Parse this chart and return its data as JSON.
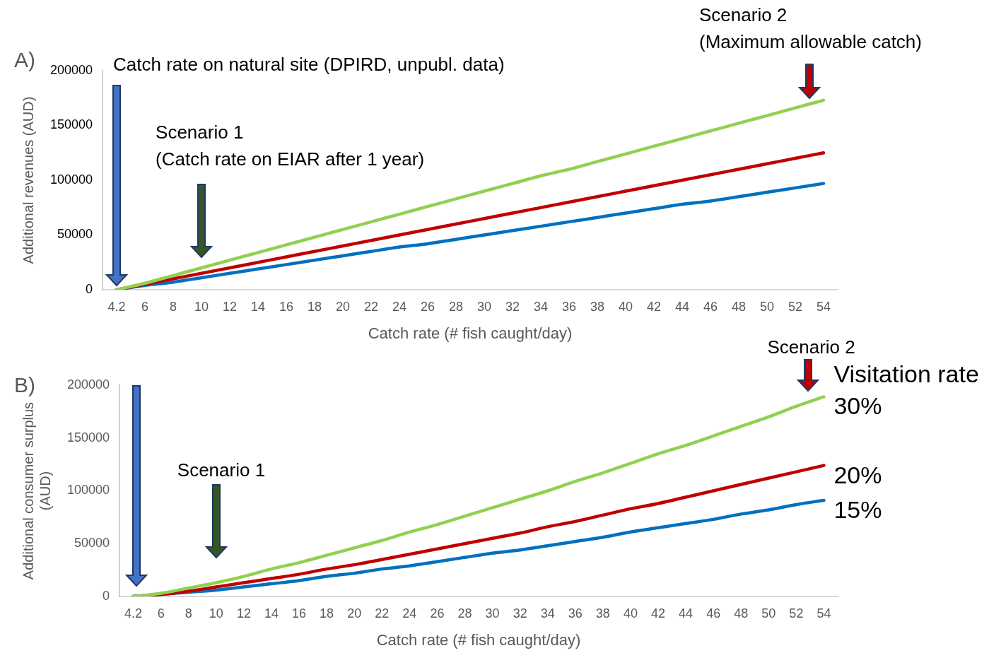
{
  "chart_data": [
    {
      "type": "line",
      "title": "A)",
      "xlabel": "Catch rate (# fish caught/day)",
      "ylabel": "Additional revenues (AUD)",
      "categories": [
        "4.2",
        "6",
        "8",
        "10",
        "12",
        "14",
        "16",
        "18",
        "20",
        "22",
        "24",
        "26",
        "28",
        "30",
        "32",
        "34",
        "36",
        "38",
        "40",
        "42",
        "44",
        "46",
        "48",
        "50",
        "52",
        "54"
      ],
      "series": [
        {
          "color": "#92d050",
          "values": [
            0,
            6000,
            13000,
            20000,
            27000,
            34000,
            41000,
            48000,
            55000,
            62000,
            69000,
            76000,
            83000,
            90000,
            97000,
            104000,
            110000,
            117000,
            124000,
            131000,
            138000,
            145000,
            152000,
            159000,
            166000,
            173000
          ]
        },
        {
          "color": "#c00000",
          "values": [
            0,
            5000,
            10000,
            15000,
            20000,
            25000,
            30000,
            35000,
            40000,
            45000,
            50000,
            55000,
            60000,
            65000,
            70000,
            75000,
            80000,
            85000,
            90000,
            95000,
            100000,
            105000,
            110000,
            115000,
            120000,
            125000
          ]
        },
        {
          "color": "#0070c0",
          "values": [
            0,
            4000,
            7000,
            11000,
            15000,
            19000,
            23000,
            27000,
            31000,
            35000,
            39000,
            42000,
            46000,
            50000,
            54000,
            58000,
            62000,
            66000,
            70000,
            74000,
            78000,
            81000,
            85000,
            89000,
            93000,
            97000
          ]
        }
      ],
      "ylim": [
        0,
        200000
      ],
      "yticks": [
        0,
        50000,
        100000,
        150000,
        200000
      ],
      "grid": false,
      "legend": false,
      "marker": "none",
      "line_style": "solid",
      "annotations": [
        "Catch rate on natural site (DPIRD, unpubl. data)",
        "Scenario 1\n(Catch rate on EIAR after 1 year)",
        "Scenario 2\n(Maximum allowable catch)"
      ]
    },
    {
      "type": "line",
      "title": "B)",
      "xlabel": "Catch rate (# fish caught/day)",
      "ylabel": "Additional consumer surplus\n(AUD)",
      "legend_title": "Visitation rate",
      "categories": [
        "4.2",
        "6",
        "8",
        "10",
        "12",
        "14",
        "16",
        "18",
        "20",
        "22",
        "24",
        "26",
        "28",
        "30",
        "32",
        "34",
        "36",
        "38",
        "40",
        "42",
        "44",
        "46",
        "48",
        "50",
        "52",
        "54"
      ],
      "series": [
        {
          "name": "30%",
          "color": "#92d050",
          "values": [
            0,
            3000,
            8000,
            13000,
            19000,
            26000,
            32000,
            39000,
            46000,
            53000,
            61000,
            68000,
            76000,
            84000,
            92000,
            100000,
            109000,
            117000,
            126000,
            135000,
            143000,
            152000,
            161000,
            170000,
            180000,
            189000
          ]
        },
        {
          "name": "20%",
          "color": "#c00000",
          "values": [
            0,
            2000,
            5000,
            9000,
            13000,
            17000,
            21000,
            26000,
            30000,
            35000,
            40000,
            45000,
            50000,
            55000,
            60000,
            66000,
            71000,
            77000,
            83000,
            88000,
            94000,
            100000,
            106000,
            112000,
            118000,
            124000
          ]
        },
        {
          "name": "15%",
          "color": "#0070c0",
          "values": [
            0,
            2000,
            4000,
            6000,
            9000,
            12000,
            15000,
            19000,
            22000,
            26000,
            29000,
            33000,
            37000,
            41000,
            44000,
            48000,
            52000,
            56000,
            61000,
            65000,
            69000,
            73000,
            78000,
            82000,
            87000,
            91000
          ]
        }
      ],
      "ylim": [
        0,
        200000
      ],
      "yticks": [
        0,
        50000,
        100000,
        150000,
        200000
      ],
      "grid": false,
      "legend": "right",
      "marker": "none",
      "line_style": "solid",
      "annotations": [
        "Scenario 1",
        "Scenario 2"
      ]
    }
  ]
}
